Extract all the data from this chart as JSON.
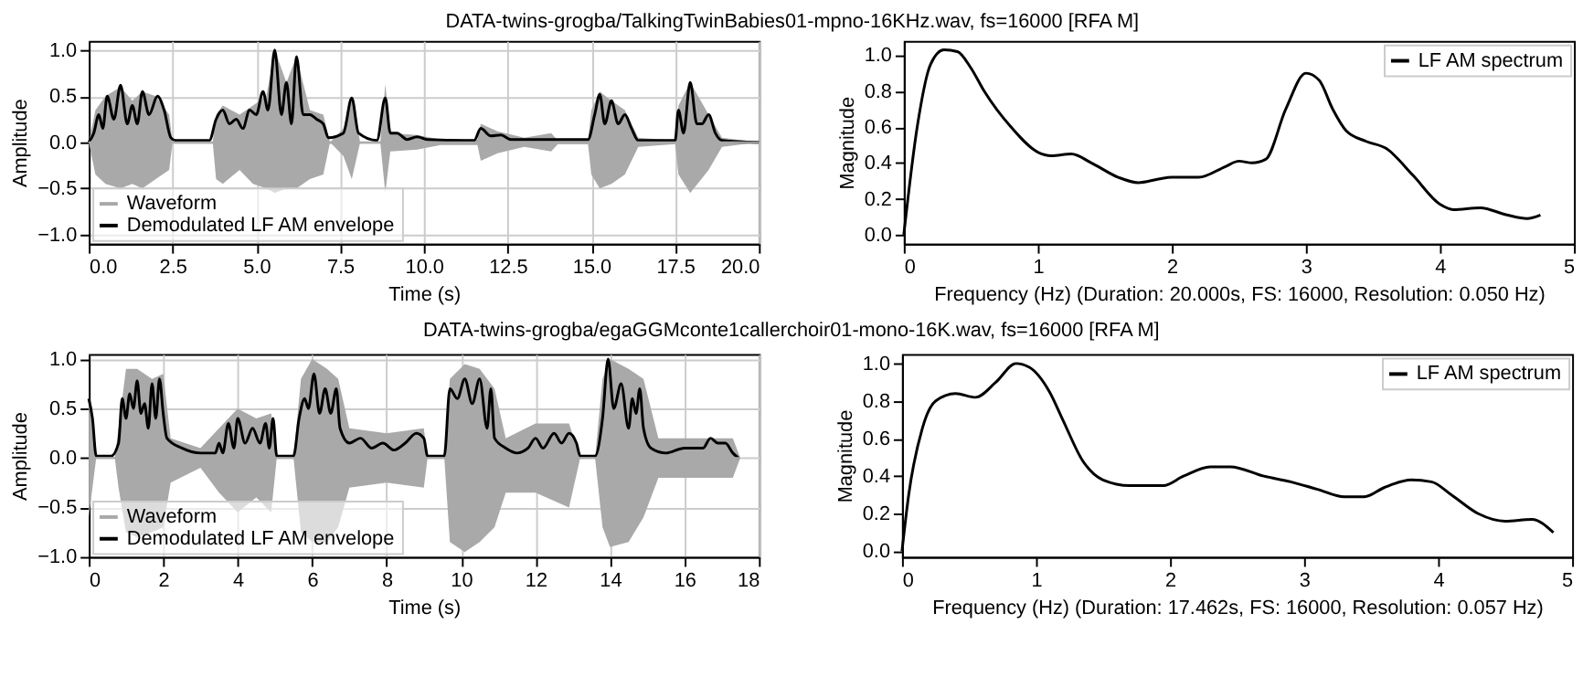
{
  "chart_data": [
    {
      "type": "line",
      "title": "DATA-twins-grogba/TalkingTwinBabies01-mpno-16KHz.wav, fs=16000 [RFA M]",
      "xlabel": "Time (s)",
      "ylabel": "Amplitude",
      "xlim": [
        0,
        20
      ],
      "xticks": [
        {
          "value": 0,
          "label": "0.0"
        },
        2.5,
        {
          "value": 5,
          "label": "5.0"
        },
        7.5,
        {
          "value": 10,
          "label": "10.0"
        },
        12.5,
        {
          "value": 15,
          "label": "15.0"
        },
        17.5,
        {
          "value": 20,
          "label": "20.0"
        }
      ],
      "ylim": [
        -1.1,
        1.1
      ],
      "yticks": [
        {
          "value": -1,
          "label": "−1.0"
        },
        {
          "value": -0.5,
          "label": "−0.5"
        },
        {
          "value": 0,
          "label": "0.0"
        },
        0.5,
        {
          "value": 1,
          "label": "1.0"
        }
      ],
      "grid": true,
      "legend": "bottom left",
      "series": [
        {
          "name": "Waveform",
          "type": "line",
          "color": "#a9a9a9",
          "x": [
            0,
            0.2,
            0.5,
            0.95,
            1.3,
            1.6,
            2.0,
            2.4,
            2.5,
            3.7,
            3.8,
            4.0,
            4.5,
            4.9,
            5.3,
            5.55,
            5.9,
            6.2,
            6.6,
            7.0,
            7.2,
            7.6,
            7.85,
            8.1,
            8.7,
            8.85,
            9.0,
            9.8,
            10.5,
            11.6,
            11.7,
            12.2,
            13.0,
            13.8,
            14.0,
            14.9,
            15.0,
            15.25,
            15.6,
            16.0,
            16.4,
            17.5,
            17.6,
            17.95,
            18.5,
            18.9,
            20
          ],
          "values": [
            0,
            0,
            0,
            0,
            0,
            0,
            0,
            0,
            0,
            0,
            0,
            0,
            0,
            0,
            0,
            0,
            0,
            0,
            0,
            0,
            0,
            0,
            0,
            0,
            0,
            0,
            0,
            0,
            0,
            0,
            0,
            0,
            0,
            0,
            0,
            0,
            0,
            0,
            0,
            0,
            0,
            0,
            0,
            0,
            0,
            0,
            0
          ],
          "upper": [
            0,
            0.35,
            0.5,
            0.6,
            0.45,
            0.55,
            0.5,
            0.3,
            0,
            0,
            0.3,
            0.4,
            0.3,
            0.4,
            0.5,
            1.0,
            0.65,
            0.93,
            0.35,
            0.3,
            0,
            0.15,
            0.5,
            0,
            0,
            0.63,
            0.1,
            0.08,
            0.03,
            0.03,
            0.2,
            0.12,
            0.05,
            0.1,
            0.02,
            0.02,
            0.35,
            0.55,
            0.45,
            0.35,
            0.05,
            0.02,
            0.4,
            0.65,
            0.3,
            0.05,
            0
          ],
          "lower": [
            0,
            -0.35,
            -0.45,
            -0.5,
            -0.45,
            -0.5,
            -0.4,
            -0.3,
            0,
            0,
            -0.4,
            -0.45,
            -0.3,
            -0.45,
            -0.5,
            -0.55,
            -0.5,
            -0.5,
            -0.4,
            -0.35,
            0,
            -0.15,
            -0.4,
            0,
            0,
            -0.55,
            -0.1,
            -0.08,
            -0.03,
            -0.03,
            -0.2,
            -0.12,
            -0.05,
            -0.1,
            -0.02,
            -0.02,
            -0.35,
            -0.5,
            -0.45,
            -0.35,
            -0.05,
            -0.02,
            -0.35,
            -0.55,
            -0.3,
            -0.05,
            0
          ]
        },
        {
          "name": "Demodulated LF AM envelope",
          "type": "line",
          "color": "#000000",
          "x": [
            0,
            0.15,
            0.3,
            0.42,
            0.55,
            0.75,
            0.95,
            1.15,
            1.3,
            1.45,
            1.6,
            1.8,
            2.05,
            2.25,
            2.45,
            2.6,
            3.6,
            3.8,
            4.0,
            4.2,
            4.4,
            4.6,
            4.8,
            5.0,
            5.2,
            5.35,
            5.55,
            5.75,
            5.9,
            6.05,
            6.2,
            6.4,
            6.6,
            6.8,
            7.0,
            7.15,
            7.6,
            7.85,
            8.05,
            8.6,
            8.85,
            9.0,
            9.2,
            9.5,
            9.8,
            10.1,
            11.5,
            11.7,
            12.0,
            12.3,
            12.6,
            13.6,
            14.9,
            15.1,
            15.25,
            15.4,
            15.6,
            15.8,
            16.0,
            16.2,
            16.4,
            17.5,
            17.6,
            17.75,
            17.95,
            18.15,
            18.3,
            18.5,
            18.7,
            18.9,
            20
          ],
          "values": [
            0,
            0.1,
            0.3,
            0.15,
            0.5,
            0.25,
            0.62,
            0.2,
            0.4,
            0.2,
            0.55,
            0.3,
            0.5,
            0.35,
            0.05,
            0.02,
            0.02,
            0.25,
            0.35,
            0.2,
            0.25,
            0.15,
            0.35,
            0.3,
            0.55,
            0.35,
            1.0,
            0.3,
            0.65,
            0.2,
            0.93,
            0.3,
            0.3,
            0.25,
            0.2,
            0.05,
            0.1,
            0.48,
            0.1,
            0.02,
            0.48,
            0.1,
            0.1,
            0.03,
            0.06,
            0.03,
            0.02,
            0.15,
            0.07,
            0.08,
            0.03,
            0.03,
            0.03,
            0.3,
            0.52,
            0.2,
            0.45,
            0.2,
            0.3,
            0.15,
            0.02,
            0.02,
            0.35,
            0.1,
            0.65,
            0.2,
            0.2,
            0.3,
            0.1,
            0.02,
            0
          ]
        }
      ]
    },
    {
      "type": "line",
      "xlabel": "Frequency (Hz) (Duration: 20.000s, FS: 16000, Resolution: 0.050 Hz)",
      "ylabel": "Magnitude",
      "xlim": [
        0,
        5
      ],
      "xticks": [
        0,
        1,
        2,
        3,
        4,
        5
      ],
      "ylim": [
        -0.05,
        1.08
      ],
      "yticks": [
        {
          "value": 0,
          "label": "0.0"
        },
        0.2,
        0.4,
        0.6,
        0.8,
        {
          "value": 1,
          "label": "1.0"
        }
      ],
      "grid": false,
      "legend": "top right",
      "series": [
        {
          "name": "LF AM spectrum",
          "color": "#000000",
          "x": [
            0,
            0.1,
            0.2,
            0.3,
            0.4,
            0.5,
            0.6,
            0.8,
            1.0,
            1.1,
            1.25,
            1.4,
            1.6,
            1.75,
            1.9,
            2.0,
            2.2,
            2.4,
            2.5,
            2.6,
            2.7,
            2.85,
            3.0,
            3.1,
            3.2,
            3.3,
            3.45,
            3.6,
            3.8,
            4.0,
            4.1,
            4.3,
            4.5,
            4.65,
            4.75
          ],
          "values": [
            0,
            0.6,
            0.95,
            1.03,
            1.02,
            0.93,
            0.8,
            0.6,
            0.46,
            0.44,
            0.45,
            0.4,
            0.32,
            0.29,
            0.31,
            0.32,
            0.32,
            0.38,
            0.41,
            0.4,
            0.42,
            0.7,
            0.9,
            0.86,
            0.7,
            0.58,
            0.52,
            0.48,
            0.33,
            0.17,
            0.14,
            0.15,
            0.11,
            0.09,
            0.11
          ]
        }
      ]
    },
    {
      "type": "line",
      "title": "DATA-twins-grogba/egaGGMconte1callerchoir01-mono-16K.wav, fs=16000 [RFA M]",
      "xlabel": "Time (s)",
      "ylabel": "Amplitude",
      "xlim": [
        0,
        18
      ],
      "xticks": [
        0,
        2,
        4,
        6,
        8,
        10,
        12,
        14,
        16,
        18
      ],
      "ylim": [
        -1.0,
        1.05
      ],
      "yticks": [
        {
          "value": -1,
          "label": "−1.0"
        },
        {
          "value": -0.5,
          "label": "−0.5"
        },
        {
          "value": 0,
          "label": "0.0"
        },
        0.5,
        {
          "value": 1,
          "label": "1.0"
        }
      ],
      "grid": true,
      "legend": "bottom left",
      "series": [
        {
          "name": "Waveform",
          "type": "line",
          "color": "#a9a9a9",
          "x": [
            0,
            0.2,
            0.7,
            0.8,
            1.0,
            1.3,
            1.7,
            2.0,
            2.2,
            3.0,
            3.5,
            4.0,
            4.5,
            4.9,
            5.05,
            5.5,
            5.7,
            6.0,
            6.4,
            6.7,
            7.0,
            8.0,
            9.0,
            9.1,
            9.55,
            9.7,
            10.1,
            10.5,
            10.9,
            11.2,
            12.0,
            12.9,
            13.2,
            13.6,
            13.8,
            14.0,
            14.5,
            14.9,
            15.3,
            16.5,
            17.3,
            17.5
          ],
          "values": [
            0,
            0,
            0,
            0,
            0,
            0,
            0,
            0,
            0,
            0,
            0,
            0,
            0,
            0,
            0,
            0,
            0,
            0,
            0,
            0,
            0,
            0,
            0,
            0,
            0,
            0,
            0,
            0,
            0,
            0,
            0,
            0,
            0,
            0,
            0,
            0,
            0,
            0,
            0,
            0,
            0,
            0
          ],
          "upper": [
            0.6,
            0,
            0,
            0.3,
            0.9,
            0.9,
            0.8,
            0.85,
            0.2,
            0.1,
            0.3,
            0.5,
            0.4,
            0.45,
            0,
            0,
            0.8,
            1.0,
            0.9,
            0.8,
            0.3,
            0.25,
            0.3,
            0,
            0,
            0.8,
            0.95,
            0.9,
            0.7,
            0.2,
            0.35,
            0.35,
            0,
            0,
            0.8,
            1.0,
            0.9,
            0.8,
            0.2,
            0.2,
            0.2,
            0
          ],
          "lower": [
            -0.6,
            0,
            0,
            -0.3,
            -0.75,
            -0.8,
            -0.75,
            -0.7,
            -0.25,
            -0.1,
            -0.35,
            -0.55,
            -0.4,
            -0.55,
            0,
            0,
            -0.75,
            -0.85,
            -0.85,
            -0.7,
            -0.3,
            -0.25,
            -0.3,
            0,
            0,
            -0.85,
            -0.95,
            -0.85,
            -0.7,
            -0.35,
            -0.35,
            -0.5,
            0,
            0,
            -0.7,
            -0.9,
            -0.85,
            -0.6,
            -0.2,
            -0.2,
            -0.2,
            0
          ]
        },
        {
          "name": "Demodulated LF AM envelope",
          "type": "line",
          "color": "#000000",
          "x": [
            0,
            0.1,
            0.2,
            0.6,
            0.8,
            0.9,
            1.0,
            1.1,
            1.2,
            1.3,
            1.4,
            1.5,
            1.6,
            1.7,
            1.8,
            1.9,
            2.0,
            2.1,
            2.5,
            3.0,
            3.4,
            3.5,
            3.6,
            3.75,
            3.9,
            4.0,
            4.2,
            4.4,
            4.6,
            4.75,
            4.85,
            4.95,
            5.05,
            5.5,
            5.65,
            5.8,
            5.9,
            6.05,
            6.2,
            6.35,
            6.5,
            6.65,
            6.75,
            7.0,
            7.3,
            7.6,
            7.9,
            8.2,
            8.5,
            8.8,
            9.0,
            9.1,
            9.55,
            9.7,
            9.9,
            10.1,
            10.3,
            10.5,
            10.7,
            10.8,
            10.9,
            11.2,
            11.5,
            11.8,
            12.0,
            12.2,
            12.5,
            12.7,
            12.9,
            13.1,
            13.2,
            13.6,
            13.8,
            13.95,
            14.1,
            14.3,
            14.5,
            14.6,
            14.7,
            14.8,
            14.9,
            15.1,
            15.5,
            16.0,
            16.5,
            16.7,
            16.9,
            17.1,
            17.3,
            17.45
          ],
          "values": [
            0.6,
            0.4,
            0.02,
            0.02,
            0.15,
            0.6,
            0.4,
            0.65,
            0.5,
            0.78,
            0.45,
            0.55,
            0.3,
            0.75,
            0.4,
            0.8,
            0.45,
            0.2,
            0.1,
            0.05,
            0.05,
            0.15,
            0.05,
            0.35,
            0.1,
            0.4,
            0.15,
            0.3,
            0.15,
            0.35,
            0.1,
            0.4,
            0.02,
            0.02,
            0.4,
            0.6,
            0.5,
            0.85,
            0.45,
            0.7,
            0.45,
            0.7,
            0.3,
            0.15,
            0.2,
            0.1,
            0.15,
            0.08,
            0.15,
            0.25,
            0.2,
            0.02,
            0.02,
            0.7,
            0.6,
            0.8,
            0.55,
            0.8,
            0.3,
            0.7,
            0.2,
            0.1,
            0.05,
            0.1,
            0.2,
            0.1,
            0.25,
            0.15,
            0.25,
            0.15,
            0.02,
            0.02,
            0.4,
            1.0,
            0.5,
            0.75,
            0.3,
            0.6,
            0.45,
            0.7,
            0.3,
            0.1,
            0.05,
            0.1,
            0.1,
            0.2,
            0.15,
            0.15,
            0.05,
            0
          ]
        }
      ]
    },
    {
      "type": "line",
      "xlabel": "Frequency (Hz) (Duration: 17.462s, FS: 16000, Resolution: 0.057 Hz)",
      "ylabel": "Magnitude",
      "xlim": [
        0,
        5
      ],
      "xticks": [
        0,
        1,
        2,
        3,
        4,
        5
      ],
      "ylim": [
        -0.03,
        1.05
      ],
      "yticks": [
        {
          "value": 0,
          "label": "0.0"
        },
        0.2,
        0.4,
        0.6,
        0.8,
        {
          "value": 1,
          "label": "1.0"
        }
      ],
      "grid": false,
      "legend": "top right",
      "series": [
        {
          "name": "LF AM spectrum",
          "color": "#000000",
          "x": [
            0,
            0.05,
            0.15,
            0.25,
            0.4,
            0.55,
            0.7,
            0.85,
            0.95,
            1.1,
            1.2,
            1.35,
            1.5,
            1.7,
            1.95,
            2.1,
            2.3,
            2.45,
            2.7,
            2.9,
            3.1,
            3.3,
            3.45,
            3.6,
            3.8,
            3.95,
            4.1,
            4.3,
            4.5,
            4.7,
            4.86
          ],
          "values": [
            0,
            0.3,
            0.65,
            0.8,
            0.84,
            0.82,
            0.9,
            1.0,
            0.98,
            0.85,
            0.7,
            0.48,
            0.38,
            0.35,
            0.35,
            0.4,
            0.45,
            0.45,
            0.4,
            0.37,
            0.33,
            0.29,
            0.29,
            0.34,
            0.38,
            0.37,
            0.3,
            0.2,
            0.16,
            0.17,
            0.1
          ]
        }
      ]
    }
  ]
}
